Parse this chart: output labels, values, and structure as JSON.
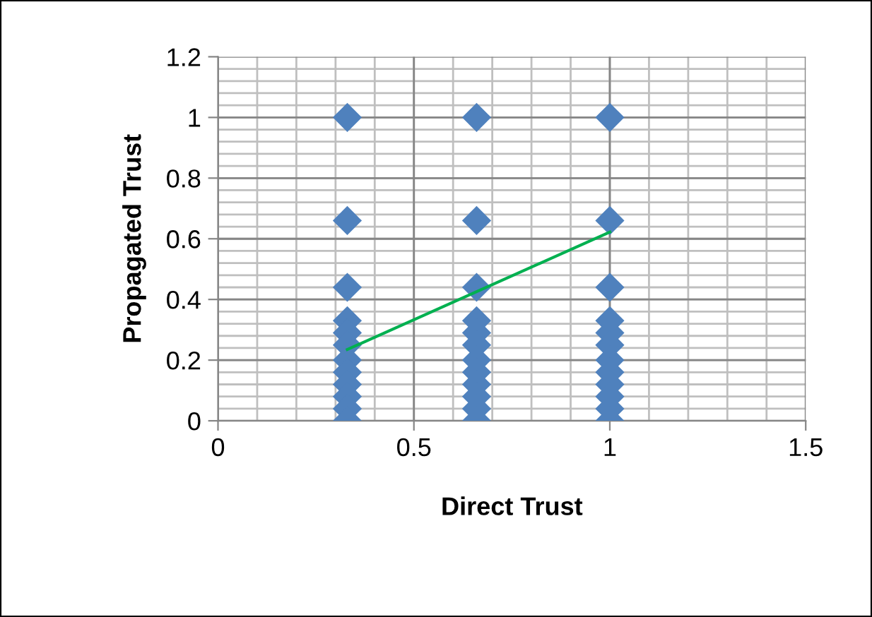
{
  "chart_data": {
    "type": "scatter",
    "xlabel": "Direct Trust",
    "ylabel": "Propagated Trust",
    "xlim": [
      0,
      1.5
    ],
    "ylim": [
      0,
      1.2
    ],
    "xticks": [
      0,
      0.5,
      1,
      1.5
    ],
    "yticks": [
      0,
      0.2,
      0.4,
      0.6,
      0.8,
      1,
      1.2
    ],
    "grid": true,
    "legend": false,
    "series": [
      {
        "color": "#4f81bd",
        "marker": "diamond",
        "x": [
          0.33,
          0.33,
          0.33,
          0.33,
          0.33,
          0.33,
          0.33,
          0.33,
          0.33,
          0.33,
          0.33,
          0.33,
          0.66,
          0.66,
          0.66,
          0.66,
          0.66,
          0.66,
          0.66,
          0.66,
          0.66,
          0.66,
          0.66,
          0.66,
          1,
          1,
          1,
          1,
          1,
          1,
          1,
          1,
          1,
          1,
          1,
          1
        ],
        "values": [
          1,
          0.66,
          0.44,
          0.33,
          0.29,
          0.25,
          0.2,
          0.16,
          0.12,
          0.08,
          0.04,
          0,
          1,
          0.66,
          0.44,
          0.33,
          0.29,
          0.25,
          0.2,
          0.16,
          0.12,
          0.08,
          0.04,
          0,
          1,
          0.66,
          0.44,
          0.33,
          0.29,
          0.25,
          0.2,
          0.16,
          0.12,
          0.08,
          0.04,
          0
        ]
      },
      {
        "type": "line",
        "color": "#00b050",
        "x": [
          0.33,
          1
        ],
        "values": [
          0.235,
          0.622
        ]
      }
    ]
  }
}
